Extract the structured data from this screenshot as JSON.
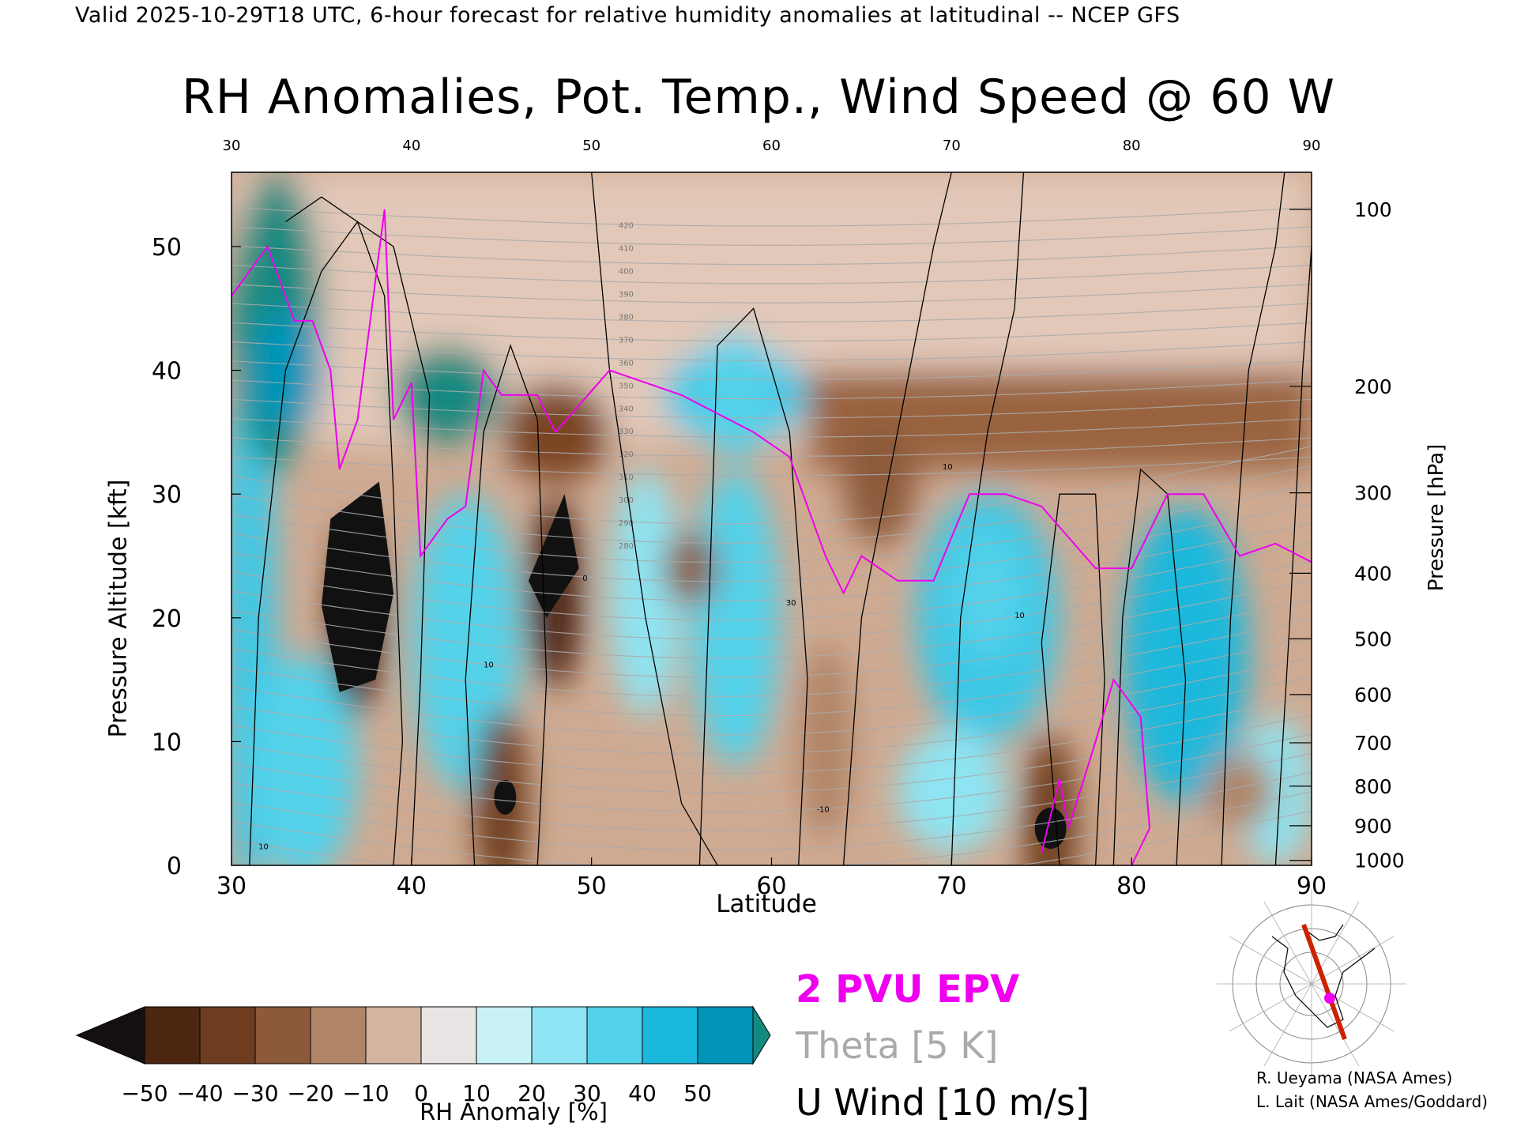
{
  "header": "Valid 2025-10-29T18 UTC, 6-hour forecast for relative humidity anomalies at latitudinal -- NCEP GFS",
  "chart_data": {
    "type": "heatmap",
    "title": "RH Anomalies, Pot. Temp., Wind Speed @ 60 W",
    "xlabel": "Latitude",
    "ylabel": "Pressure Altitude [kft]",
    "y2label": "Pressure [hPa]",
    "xlim": [
      30,
      90
    ],
    "ylim": [
      0,
      56
    ],
    "x_ticks": [
      "30",
      "40",
      "50",
      "60",
      "70",
      "80",
      "90"
    ],
    "x_ticks_top": [
      "30",
      "40",
      "50",
      "60",
      "70",
      "80",
      "90"
    ],
    "y_ticks": [
      "0",
      "10",
      "20",
      "30",
      "40",
      "50"
    ],
    "pressure_ticks": [
      {
        "label": "100",
        "alt": 53.0
      },
      {
        "label": "200",
        "alt": 38.7
      },
      {
        "label": "300",
        "alt": 30.1
      },
      {
        "label": "400",
        "alt": 23.6
      },
      {
        "label": "500",
        "alt": 18.3
      },
      {
        "label": "600",
        "alt": 13.8
      },
      {
        "label": "700",
        "alt": 9.9
      },
      {
        "label": "800",
        "alt": 6.4
      },
      {
        "label": "900",
        "alt": 3.2
      },
      {
        "label": "1000",
        "alt": 0.4
      }
    ],
    "colorbar": {
      "label": "RH Anomaly [%]",
      "ticks": [
        "−50",
        "−40",
        "−30",
        "−20",
        "−10",
        "0",
        "10",
        "20",
        "30",
        "40",
        "50"
      ],
      "colors": [
        "#141010",
        "#4d2612",
        "#6e3d1f",
        "#8c5a3a",
        "#b08466",
        "#d2b4a0",
        "#e8e4e4",
        "#c8f2f8",
        "#8ee4f2",
        "#52d2ea",
        "#1ab8dc",
        "#0094b8",
        "#128a80"
      ]
    },
    "rh_features": [
      {
        "lat": 37.0,
        "alt": 20,
        "rh": -50
      },
      {
        "lat": 48.0,
        "alt": 22,
        "rh": -50
      },
      {
        "lat": 45.0,
        "alt": 5,
        "rh": -45
      },
      {
        "lat": 75.5,
        "alt": 3,
        "rh": -45
      },
      {
        "lat": 66.0,
        "alt": 31,
        "rh": -35
      },
      {
        "lat": 33.0,
        "alt": 40,
        "rh": 50
      },
      {
        "lat": 58.0,
        "alt": 38,
        "rh": 30
      },
      {
        "lat": 72.0,
        "alt": 22,
        "rh": 30
      },
      {
        "lat": 83.0,
        "alt": 16,
        "rh": 35
      }
    ],
    "theta_labels": [
      "420",
      "410",
      "400",
      "390",
      "380",
      "370",
      "360",
      "350",
      "340",
      "330",
      "320",
      "310",
      "300",
      "290",
      "280"
    ],
    "wind_labels": [
      "10",
      "0",
      "30",
      "-10"
    ],
    "legend": [
      "2 PVU EPV",
      "Theta [5 K]",
      "U Wind [10 m/s]"
    ],
    "colors": {
      "epv": "#ee00ee",
      "theta": "#aaaaaa",
      "wind": "#000000",
      "track": "#cc2200"
    }
  },
  "credits": [
    "R. Ueyama (NASA Ames)",
    "L. Lait (NASA Ames/Goddard)"
  ]
}
